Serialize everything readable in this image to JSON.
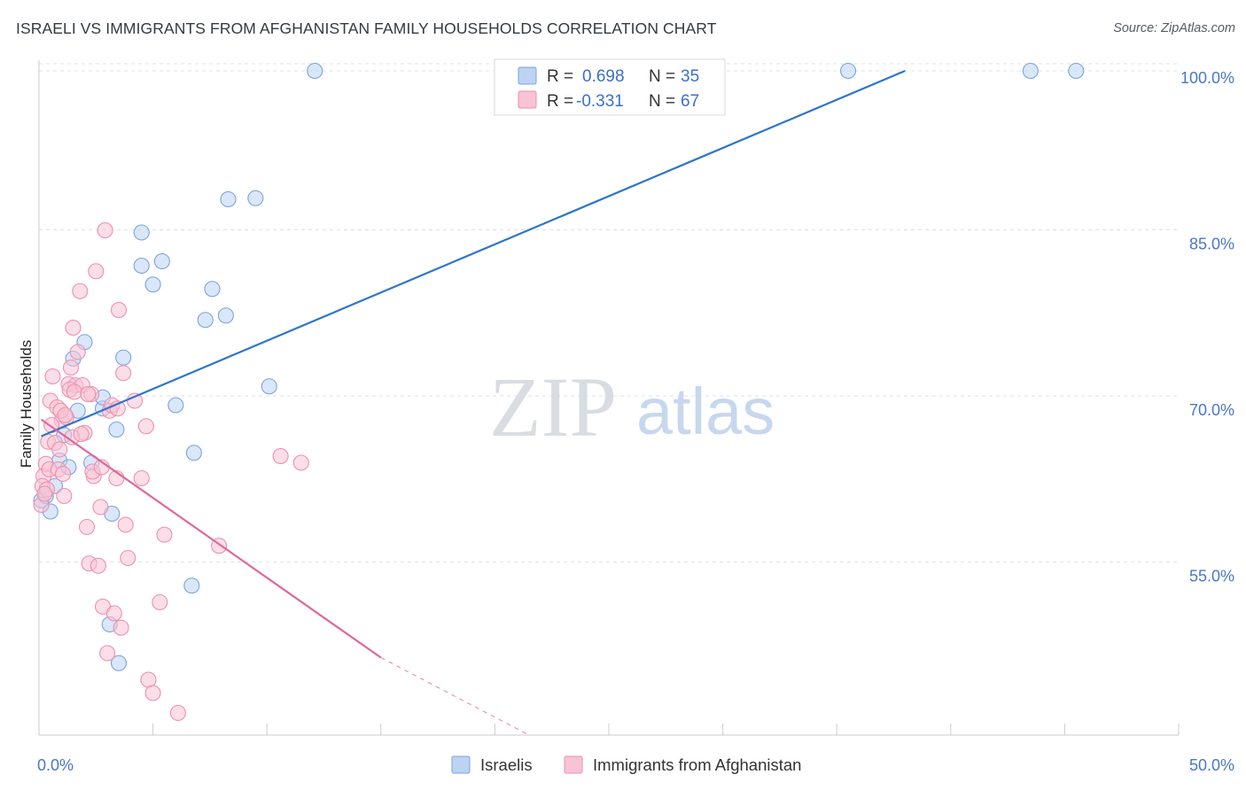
{
  "title": "ISRAELI VS IMMIGRANTS FROM AFGHANISTAN FAMILY HOUSEHOLDS CORRELATION CHART",
  "source": "Source: ZipAtlas.com",
  "watermark": {
    "zip": "ZIP",
    "atlas": "atlas"
  },
  "colors": {
    "blue_fill": "#bcd3f2",
    "blue_stroke": "#7aa3de",
    "blue_line": "#2e75cc",
    "pink_fill": "#f8c3d4",
    "pink_stroke": "#ee8fae",
    "pink_line": "#e0679a",
    "axis_label": "#4a77c4",
    "grid": "#dde2ea"
  },
  "chart_data": {
    "type": "scatter",
    "title": "ISRAELI VS IMMIGRANTS FROM AFGHANISTAN FAMILY HOUSEHOLDS CORRELATION CHART",
    "xlabel": "",
    "ylabel": "Family Households",
    "xlim": [
      0,
      50
    ],
    "ylim": [
      40,
      102.5
    ],
    "x_tick_labels": [
      "0.0%",
      "50.0%"
    ],
    "y_ticks": [
      55,
      70,
      85,
      100
    ],
    "y_tick_labels": [
      "55.0%",
      "70.0%",
      "85.0%",
      "100.0%"
    ],
    "legend": [
      {
        "name": "Israelis",
        "r_label": "R =",
        "r_value": "0.698",
        "n_label": "N =",
        "n_value": "35"
      },
      {
        "name": "Immigrants from Afghanistan",
        "r_label": "R =",
        "r_value": "-0.331",
        "n_label": "N =",
        "n_value": "67"
      }
    ],
    "series": [
      {
        "name": "Israelis",
        "color": "blue",
        "points": [
          [
            0.1,
            61.2
          ],
          [
            0.3,
            61.6
          ],
          [
            0.5,
            60.2
          ],
          [
            0.7,
            62.5
          ],
          [
            0.9,
            64.8
          ],
          [
            1.1,
            67.1
          ],
          [
            1.3,
            64.2
          ],
          [
            1.5,
            74.0
          ],
          [
            1.7,
            69.3
          ],
          [
            2.0,
            75.5
          ],
          [
            2.3,
            64.6
          ],
          [
            2.8,
            69.5
          ],
          [
            2.8,
            70.5
          ],
          [
            3.4,
            67.6
          ],
          [
            3.2,
            60.0
          ],
          [
            3.5,
            46.5
          ],
          [
            3.7,
            74.1
          ],
          [
            4.5,
            82.4
          ],
          [
            4.5,
            85.4
          ],
          [
            5.0,
            80.7
          ],
          [
            5.4,
            82.8
          ],
          [
            6.0,
            69.8
          ],
          [
            6.8,
            65.5
          ],
          [
            7.3,
            77.5
          ],
          [
            7.6,
            80.3
          ],
          [
            8.2,
            77.9
          ],
          [
            8.3,
            88.4
          ],
          [
            9.5,
            88.5
          ],
          [
            10.1,
            71.5
          ],
          [
            12.1,
            100.0
          ],
          [
            35.5,
            100.0
          ],
          [
            43.5,
            100.0
          ],
          [
            45.5,
            100.0
          ],
          [
            3.1,
            50.0
          ],
          [
            6.7,
            53.5
          ]
        ],
        "trend": {
          "x0": 0.1,
          "y0": 67.0,
          "x1": 38.0,
          "y1": 100.0
        }
      },
      {
        "name": "Immigrants from Afghanistan",
        "color": "pink",
        "points": [
          [
            0.1,
            60.8
          ],
          [
            0.2,
            63.4
          ],
          [
            0.3,
            64.5
          ],
          [
            0.4,
            66.5
          ],
          [
            0.5,
            70.2
          ],
          [
            0.6,
            72.4
          ],
          [
            0.7,
            66.4
          ],
          [
            0.8,
            69.6
          ],
          [
            0.9,
            65.8
          ],
          [
            1.0,
            68.4
          ],
          [
            1.1,
            61.6
          ],
          [
            1.2,
            68.7
          ],
          [
            1.3,
            71.7
          ],
          [
            1.4,
            73.2
          ],
          [
            1.5,
            76.8
          ],
          [
            1.6,
            71.6
          ],
          [
            1.7,
            74.6
          ],
          [
            1.8,
            80.1
          ],
          [
            1.9,
            71.6
          ],
          [
            2.0,
            67.3
          ],
          [
            2.1,
            58.8
          ],
          [
            2.2,
            55.5
          ],
          [
            2.3,
            70.8
          ],
          [
            2.4,
            63.4
          ],
          [
            2.5,
            81.9
          ],
          [
            2.6,
            55.3
          ],
          [
            2.7,
            60.6
          ],
          [
            2.8,
            51.6
          ],
          [
            2.9,
            85.6
          ],
          [
            3.0,
            47.4
          ],
          [
            3.1,
            69.3
          ],
          [
            3.2,
            69.8
          ],
          [
            3.3,
            51.0
          ],
          [
            3.4,
            63.2
          ],
          [
            3.5,
            78.4
          ],
          [
            3.6,
            49.7
          ],
          [
            3.7,
            72.7
          ],
          [
            3.8,
            59.0
          ],
          [
            3.9,
            56.0
          ],
          [
            4.2,
            70.2
          ],
          [
            4.5,
            63.2
          ],
          [
            4.7,
            67.9
          ],
          [
            4.8,
            45.0
          ],
          [
            5.0,
            43.8
          ],
          [
            5.3,
            52.0
          ],
          [
            5.5,
            58.1
          ],
          [
            6.1,
            42.0
          ],
          [
            7.9,
            57.1
          ],
          [
            10.6,
            65.2
          ],
          [
            11.5,
            64.6
          ],
          [
            0.15,
            62.5
          ],
          [
            0.35,
            62.2
          ],
          [
            0.45,
            64.0
          ],
          [
            0.55,
            68.0
          ],
          [
            0.85,
            64.0
          ],
          [
            0.95,
            69.3
          ],
          [
            1.05,
            63.6
          ],
          [
            1.15,
            68.9
          ],
          [
            1.35,
            71.2
          ],
          [
            1.45,
            66.9
          ],
          [
            1.55,
            71.0
          ],
          [
            1.85,
            67.2
          ],
          [
            2.15,
            70.8
          ],
          [
            2.35,
            63.8
          ],
          [
            2.75,
            64.2
          ],
          [
            3.45,
            69.5
          ],
          [
            0.25,
            61.8
          ]
        ],
        "trend": {
          "x0": 0.1,
          "y0": 68.5,
          "x1": 15.0,
          "y1": 47.0
        },
        "trend_dashed": {
          "x0": 15.0,
          "y0": 47.0,
          "x1": 21.5,
          "y1": 40.0
        }
      }
    ]
  }
}
